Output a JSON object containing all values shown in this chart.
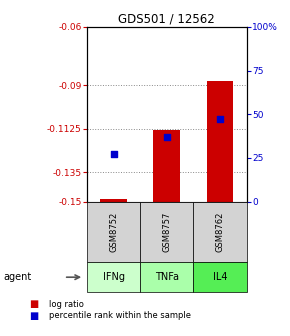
{
  "title": "GDS501 / 12562",
  "samples": [
    "GSM8752",
    "GSM8757",
    "GSM8762"
  ],
  "agents": [
    "IFNg",
    "TNFa",
    "IL4"
  ],
  "log_ratios": [
    -0.1485,
    -0.113,
    -0.088
  ],
  "percentile_ranks": [
    27,
    37,
    47
  ],
  "ylim_left": [
    -0.15,
    -0.06
  ],
  "ylim_right": [
    0,
    100
  ],
  "yticks_left": [
    -0.15,
    -0.135,
    -0.1125,
    -0.09,
    -0.06
  ],
  "yticks_right": [
    0,
    25,
    50,
    75,
    100
  ],
  "ytick_labels_left": [
    "-0.15",
    "-0.135",
    "-0.1125",
    "-0.09",
    "-0.06"
  ],
  "ytick_labels_right": [
    "0",
    "25",
    "50",
    "75",
    "100%"
  ],
  "bar_color": "#cc0000",
  "dot_color": "#0000cc",
  "agent_colors": [
    "#ccffcc",
    "#aaffaa",
    "#55ee55"
  ],
  "sample_box_color": "#d3d3d3",
  "grid_color": "#888888",
  "left_tick_color": "#cc0000",
  "right_tick_color": "#0000cc",
  "bar_width": 0.5,
  "legend_items": [
    "log ratio",
    "percentile rank within the sample"
  ]
}
